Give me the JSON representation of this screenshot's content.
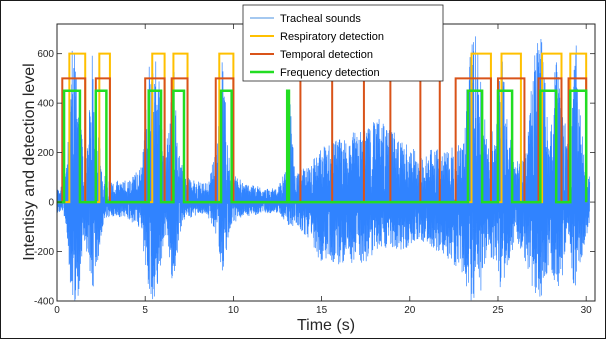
{
  "chart_data": {
    "type": "line",
    "title": "",
    "xlabel": "Time (s)",
    "ylabel": "Intentisy and detection level",
    "xlim": [
      0,
      30.5
    ],
    "ylim": [
      -400,
      720
    ],
    "xticks": [
      0,
      5,
      10,
      15,
      20,
      25,
      30
    ],
    "yticks": [
      -400,
      -200,
      0,
      200,
      400,
      600
    ],
    "grid": false,
    "legend_position": "top-center",
    "colors": {
      "tracheal": "#4A90E2",
      "tracheal_fill": "#1A75FF",
      "respiratory": "#FFC000",
      "temporal": "#D95319",
      "frequency": "#22DD22",
      "axis": "#262626"
    },
    "series": [
      {
        "name": "Tracheal sounds",
        "kind": "waveform",
        "envelope": {
          "t": [
            0,
            0.4,
            0.6,
            0.8,
            1.2,
            1.5,
            1.7,
            2.0,
            2.2,
            2.6,
            2.9,
            3.2,
            4.0,
            4.8,
            5.1,
            5.4,
            5.8,
            6.1,
            6.3,
            6.6,
            6.9,
            7.3,
            7.6,
            8.5,
            9.1,
            9.4,
            9.7,
            10.0,
            10.5,
            11.5,
            12.5,
            13.0,
            13.2,
            13.5,
            14.2,
            15.0,
            16.0,
            17.5,
            18.3,
            19.5,
            20.5,
            21.5,
            22.5,
            23.0,
            23.4,
            23.7,
            24.0,
            24.4,
            24.8,
            25.2,
            25.6,
            26.0,
            26.6,
            27.0,
            27.4,
            27.9,
            28.3,
            28.7,
            29.0,
            29.4,
            29.8,
            30.2
          ],
          "upper": [
            50,
            80,
            200,
            700,
            600,
            150,
            200,
            600,
            400,
            120,
            90,
            80,
            90,
            150,
            450,
            700,
            500,
            150,
            300,
            600,
            200,
            100,
            90,
            80,
            250,
            620,
            200,
            120,
            80,
            60,
            50,
            140,
            420,
            120,
            150,
            220,
            260,
            300,
            350,
            250,
            200,
            220,
            230,
            240,
            650,
            700,
            500,
            250,
            300,
            650,
            300,
            150,
            250,
            600,
            720,
            300,
            600,
            400,
            200,
            700,
            250,
            100
          ],
          "lower": [
            -40,
            -60,
            -150,
            -400,
            -400,
            -150,
            -200,
            -400,
            -300,
            -100,
            -60,
            -60,
            -70,
            -120,
            -350,
            -400,
            -350,
            -120,
            -200,
            -380,
            -150,
            -60,
            -60,
            -50,
            -150,
            -300,
            -150,
            -80,
            -60,
            -50,
            -40,
            -80,
            -120,
            -80,
            -150,
            -250,
            -250,
            -250,
            -180,
            -200,
            -150,
            -200,
            -250,
            -300,
            -400,
            -400,
            -380,
            -200,
            -250,
            -380,
            -250,
            -150,
            -250,
            -380,
            -400,
            -250,
            -350,
            -300,
            -150,
            -400,
            -200,
            -80
          ]
        }
      },
      {
        "name": "Respiratory detection",
        "kind": "step",
        "low": 0,
        "high": 600,
        "intervals": [
          [
            0.7,
            1.6
          ],
          [
            2.4,
            3.0
          ],
          [
            5.4,
            6.1
          ],
          [
            6.6,
            7.4
          ],
          [
            9.2,
            10.0
          ],
          [
            23.5,
            24.6
          ],
          [
            25.2,
            26.3
          ],
          [
            27.5,
            28.6
          ],
          [
            29.1,
            30.0
          ]
        ]
      },
      {
        "name": "Temporal detection",
        "kind": "step",
        "low": 0,
        "high": 500,
        "intervals": [
          [
            0.3,
            1.6
          ],
          [
            2.2,
            3.0
          ],
          [
            5.0,
            6.1
          ],
          [
            6.5,
            7.4
          ],
          [
            9.0,
            10.0
          ],
          [
            13.8,
            15.6
          ],
          [
            17.4,
            18.9
          ],
          [
            20.6,
            21.7
          ],
          [
            22.6,
            24.6
          ],
          [
            25.0,
            26.5
          ],
          [
            27.3,
            28.6
          ],
          [
            29.0,
            30.0
          ]
        ]
      },
      {
        "name": "Frequency detection",
        "kind": "step",
        "low": 0,
        "high": 450,
        "intervals": [
          [
            0.4,
            1.3
          ],
          [
            2.2,
            2.8
          ],
          [
            5.2,
            5.9
          ],
          [
            6.6,
            7.2
          ],
          [
            9.3,
            9.9
          ],
          [
            13.05,
            13.15
          ],
          [
            23.3,
            24.1
          ],
          [
            25.0,
            25.8
          ],
          [
            27.4,
            28.3
          ],
          [
            29.1,
            30.0
          ]
        ]
      }
    ]
  }
}
